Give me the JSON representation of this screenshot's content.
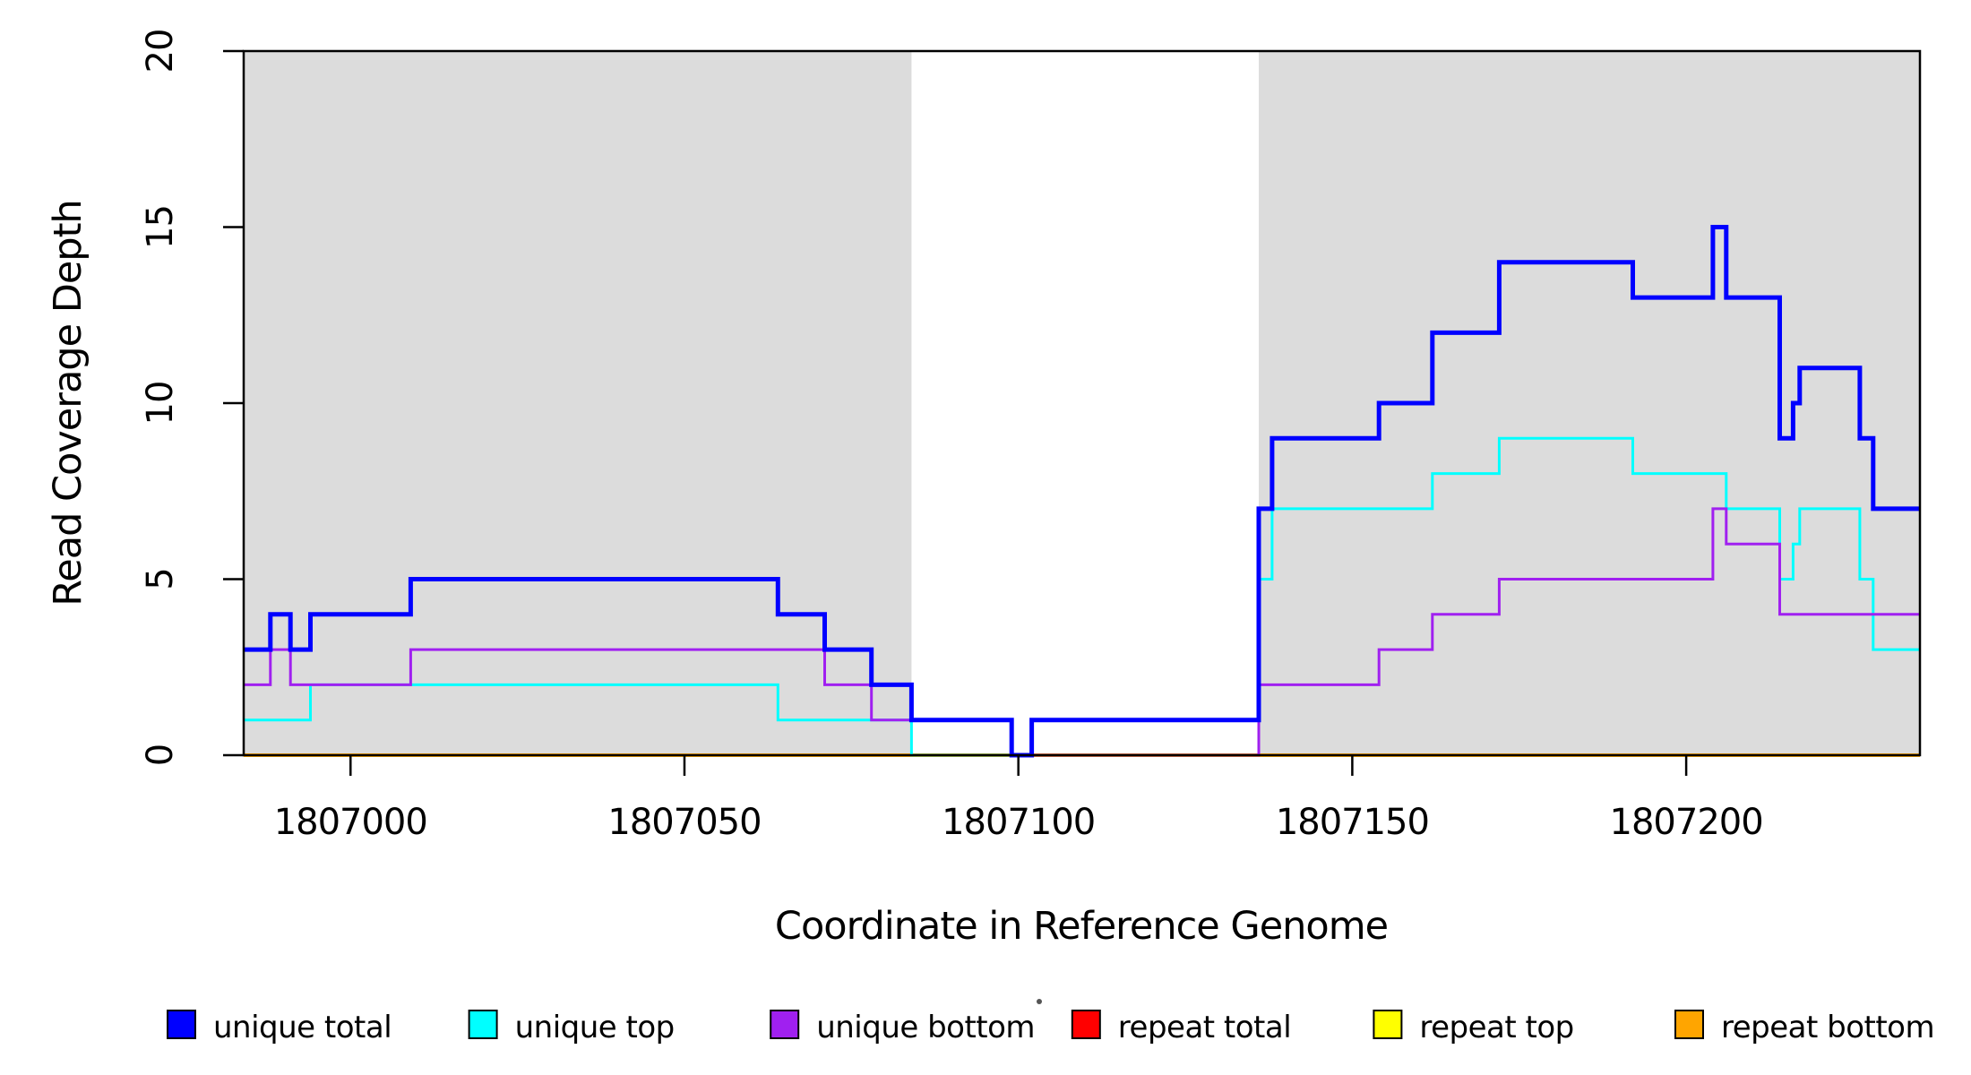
{
  "chart_data": {
    "type": "line",
    "subtype": "step-after-coverage-plot",
    "title": "",
    "xlabel": "Coordinate in Reference Genome",
    "ylabel": "Read Coverage Depth",
    "xlim": [
      1806984,
      1807235
    ],
    "ylim": [
      0,
      20
    ],
    "x_ticks": [
      1807000,
      1807050,
      1807100,
      1807150,
      1807200
    ],
    "y_ticks": [
      0,
      5,
      10,
      15,
      20
    ],
    "grid": false,
    "legend_position": "bottom",
    "shade_color": "#DCDCDC",
    "frame_color": "#000000",
    "shaded_regions": [
      [
        1806984,
        1807084
      ],
      [
        1807136,
        1807235
      ]
    ],
    "draw_order": [
      3,
      4,
      5,
      1,
      2,
      0
    ],
    "series": [
      {
        "name": "unique total",
        "color": "#0000FF",
        "lwd": 5,
        "steps": [
          [
            1806984,
            3
          ],
          [
            1806988,
            4
          ],
          [
            1806991,
            3
          ],
          [
            1806994,
            4
          ],
          [
            1807009,
            5
          ],
          [
            1807064,
            4
          ],
          [
            1807071,
            3
          ],
          [
            1807078,
            2
          ],
          [
            1807084,
            1
          ],
          [
            1807099,
            0
          ],
          [
            1807102,
            1
          ],
          [
            1807136,
            7
          ],
          [
            1807138,
            9
          ],
          [
            1807154,
            10
          ],
          [
            1807162,
            12
          ],
          [
            1807172,
            14
          ],
          [
            1807192,
            13
          ],
          [
            1807204,
            15
          ],
          [
            1807206,
            13
          ],
          [
            1807214,
            9
          ],
          [
            1807216,
            10
          ],
          [
            1807217,
            11
          ],
          [
            1807226,
            9
          ],
          [
            1807228,
            7
          ]
        ]
      },
      {
        "name": "unique top",
        "color": "#00FFFF",
        "lwd": 3,
        "steps": [
          [
            1806984,
            1
          ],
          [
            1806994,
            2
          ],
          [
            1807064,
            1
          ],
          [
            1807084,
            0
          ],
          [
            1807102,
            1
          ],
          [
            1807136,
            5
          ],
          [
            1807138,
            7
          ],
          [
            1807162,
            8
          ],
          [
            1807172,
            9
          ],
          [
            1807192,
            8
          ],
          [
            1807206,
            7
          ],
          [
            1807214,
            5
          ],
          [
            1807216,
            6
          ],
          [
            1807217,
            7
          ],
          [
            1807226,
            5
          ],
          [
            1807228,
            3
          ]
        ]
      },
      {
        "name": "unique bottom",
        "color": "#A020F0",
        "lwd": 3,
        "steps": [
          [
            1806984,
            2
          ],
          [
            1806988,
            3
          ],
          [
            1806991,
            2
          ],
          [
            1807009,
            3
          ],
          [
            1807071,
            2
          ],
          [
            1807078,
            1
          ],
          [
            1807099,
            0
          ],
          [
            1807136,
            2
          ],
          [
            1807154,
            3
          ],
          [
            1807162,
            4
          ],
          [
            1807172,
            5
          ],
          [
            1807204,
            7
          ],
          [
            1807206,
            6
          ],
          [
            1807214,
            4
          ]
        ]
      },
      {
        "name": "repeat total",
        "color": "#FF0000",
        "lwd": 3,
        "steps": [
          [
            1806984,
            0
          ]
        ]
      },
      {
        "name": "repeat top",
        "color": "#FFFF00",
        "lwd": 3,
        "steps": [
          [
            1806984,
            0
          ]
        ]
      },
      {
        "name": "repeat bottom",
        "color": "#FFA500",
        "lwd": 4,
        "steps": [
          [
            1806984,
            0
          ]
        ]
      }
    ]
  }
}
